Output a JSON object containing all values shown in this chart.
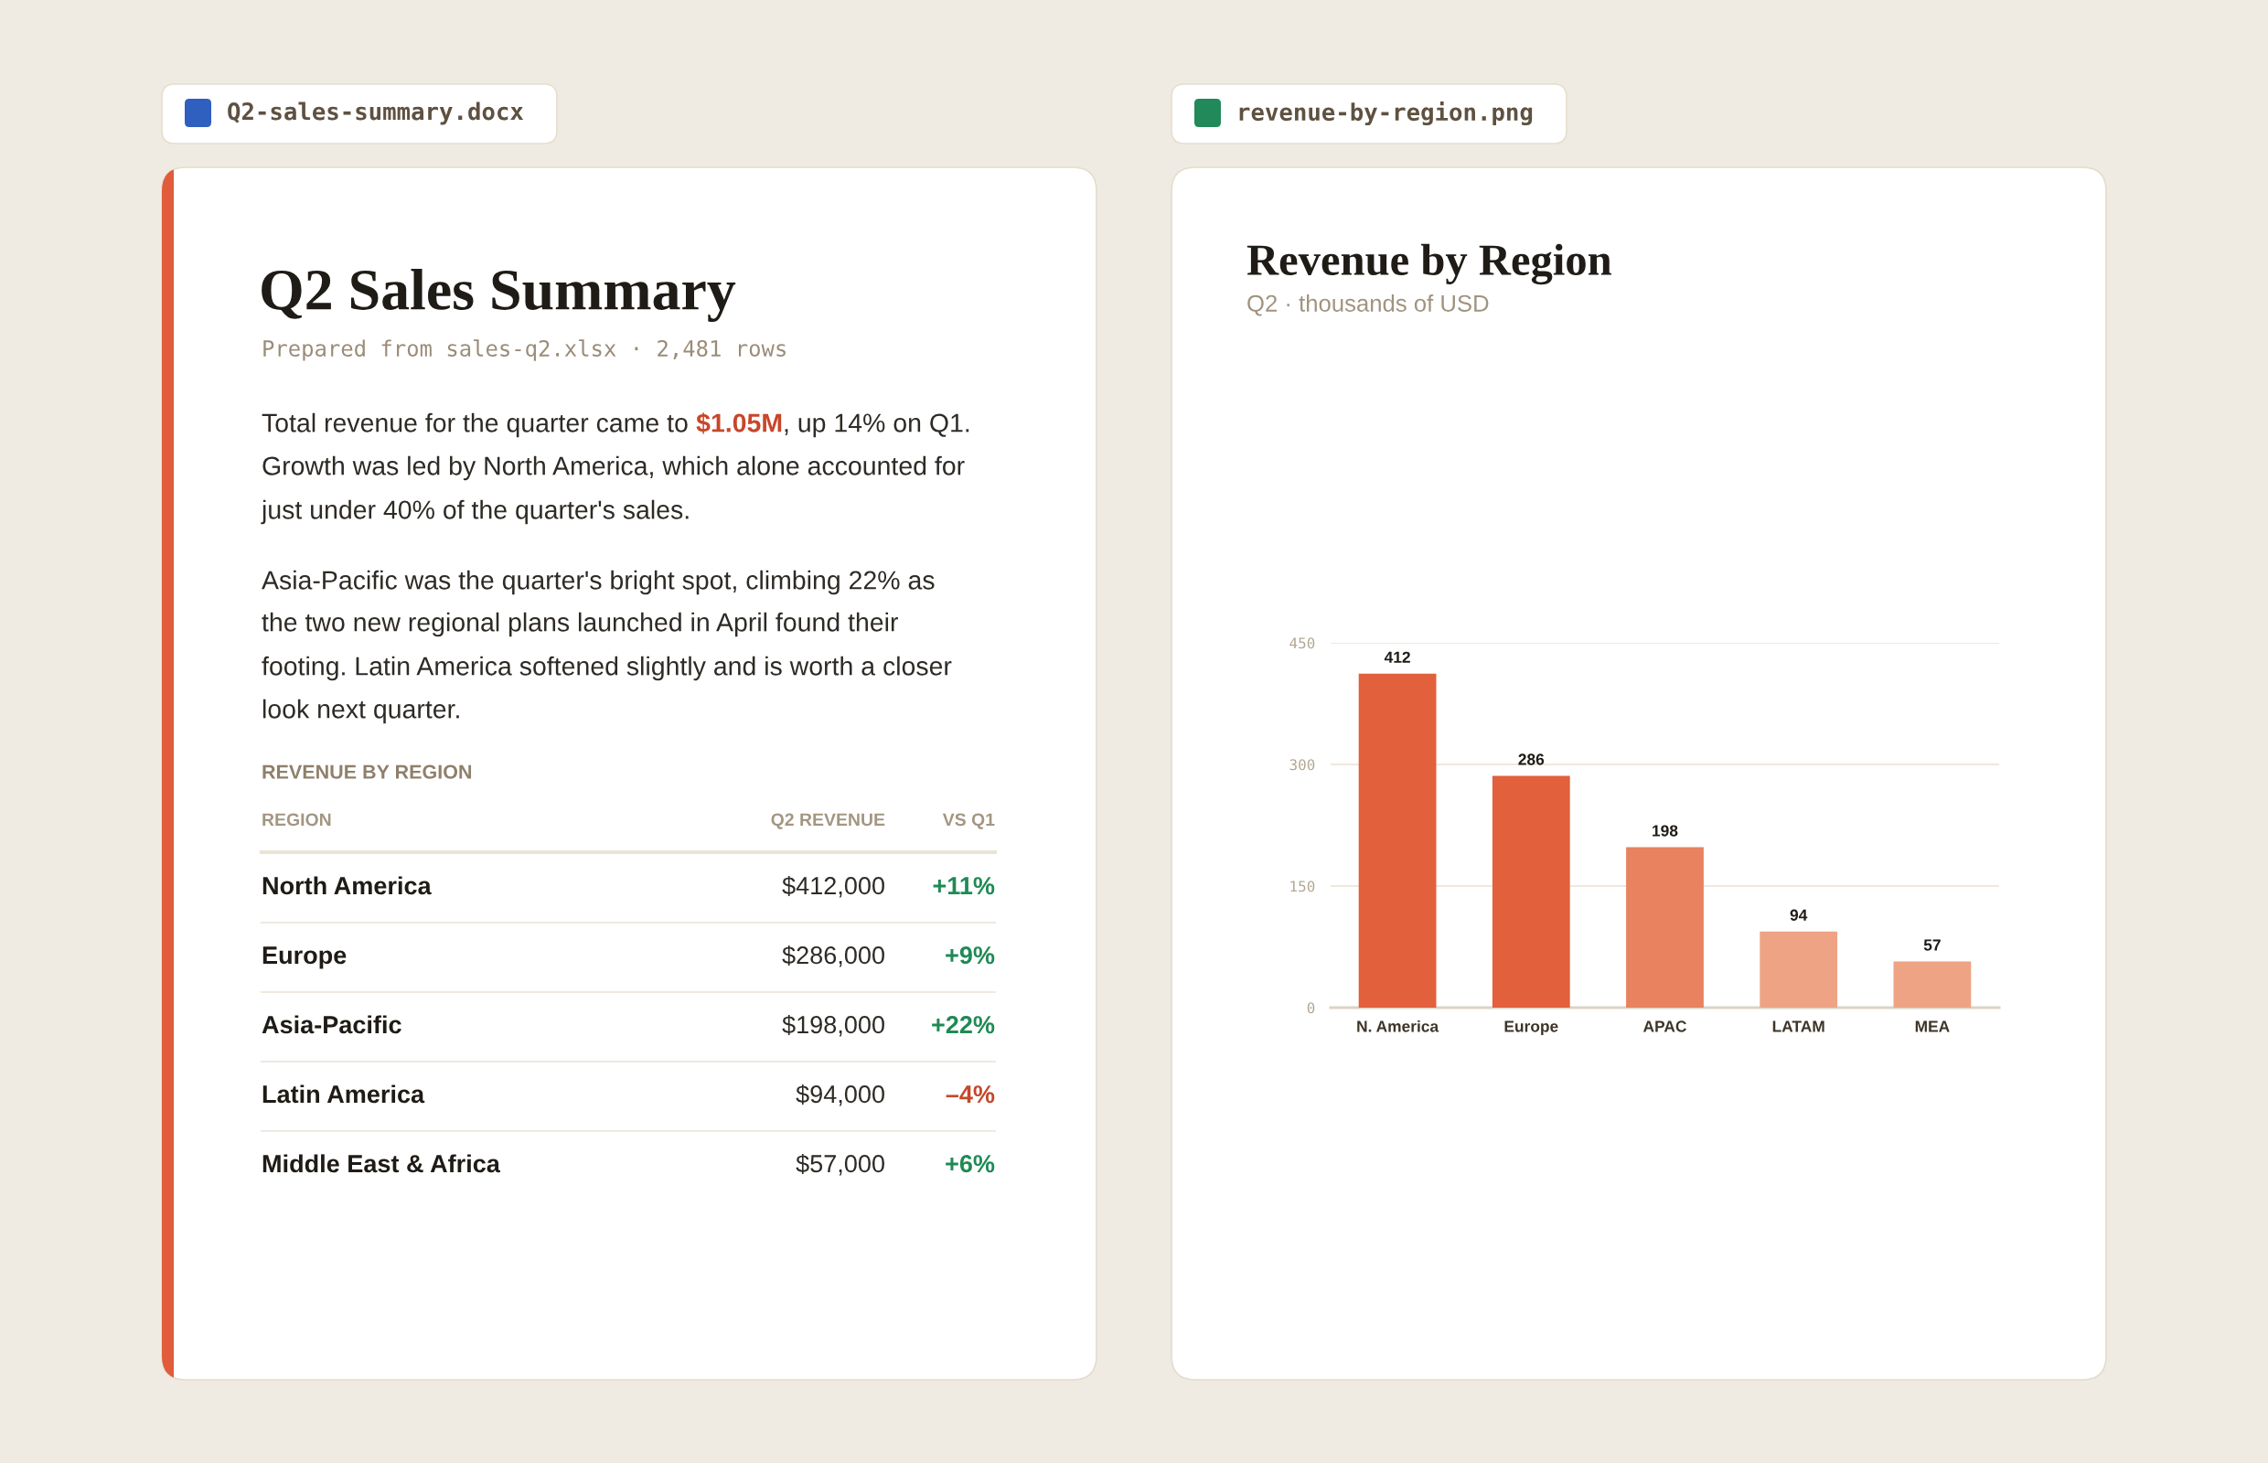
{
  "chart_data": [
    {
      "type": "other",
      "title": "Q2 Sales Summary",
      "subtitle": "Prepared from sales-q2.xlsx · 2,481 rows",
      "annotations": [
        "Q2-sales-summary.docx",
        "Total revenue for the quarter came to",
        "$1.05M",
        ", up 14% on Q1.",
        "Growth was led by North America, which alone accounted for",
        "just under 40% of the quarter's sales.",
        "Asia-Pacific was the quarter's bright spot, climbing 22% as",
        "the two new regional plans launched in April found their",
        "footing. Latin America softened slightly and is worth a closer",
        "look next quarter.",
        "REVENUE BY REGION",
        "REGION",
        "Q2 REVENUE",
        "VS Q1",
        "North America",
        "$412,000",
        "+11%",
        "Europe",
        "$286,000",
        "+9%",
        "Asia-Pacific",
        "$198,000",
        "+22%",
        "Latin America",
        "$94,000",
        "–4%",
        "Middle East & Africa",
        "$57,000",
        "+6%"
      ]
    },
    {
      "type": "bar",
      "title": "Revenue by Region",
      "subtitle": "Q2 · thousands of USD",
      "annotations": [
        "revenue-by-region.png"
      ],
      "categories": [
        "N. America",
        "Europe",
        "APAC",
        "LATAM",
        "MEA"
      ],
      "values": [
        412,
        286,
        198,
        94,
        57
      ],
      "colors": [
        "#e2603c",
        "#e2603c",
        "#e8825f",
        "#eea385",
        "#eea385"
      ],
      "ylim": [
        0,
        450
      ],
      "yticks": [
        0,
        150,
        300,
        450
      ],
      "grid": "y",
      "data_labels": true
    }
  ]
}
